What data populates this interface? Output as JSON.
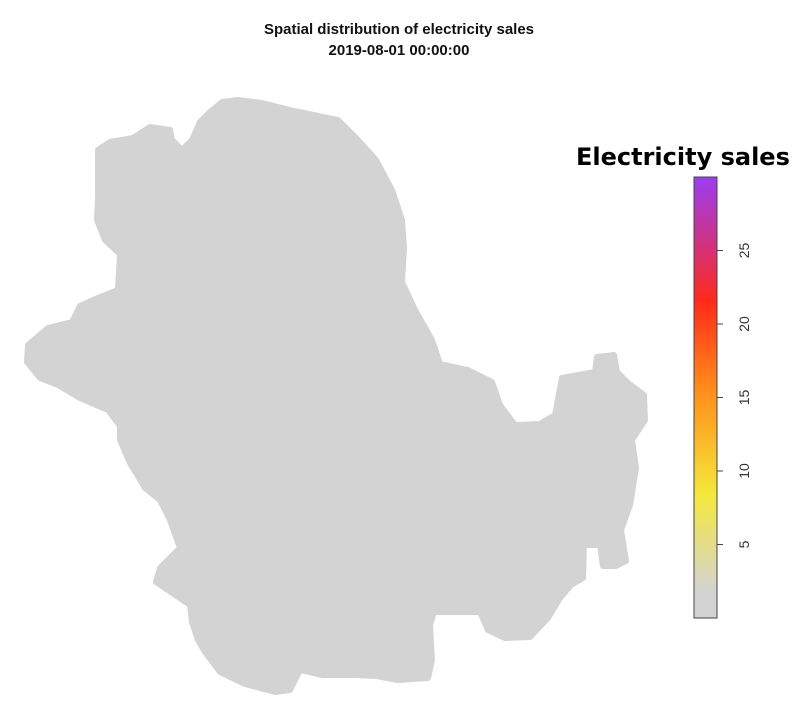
{
  "title": {
    "line1": "Spatial distribution of electricity sales",
    "line2": "2019-08-01 00:00:00"
  },
  "legend": {
    "title": "Electricity sales",
    "ticks": [
      "5",
      "10",
      "15",
      "20",
      "25"
    ],
    "tick_values": [
      5,
      10,
      15,
      20,
      25
    ],
    "range": [
      0,
      30
    ],
    "colors": {
      "low": "#d3d3d3",
      "yellow": "#f5e83a",
      "orange": "#ff8c1a",
      "red": "#ff2a1a",
      "high": "#9b3df5"
    }
  },
  "map": {
    "fill_color": "#d3d3d3",
    "background": "#ffffff"
  }
}
